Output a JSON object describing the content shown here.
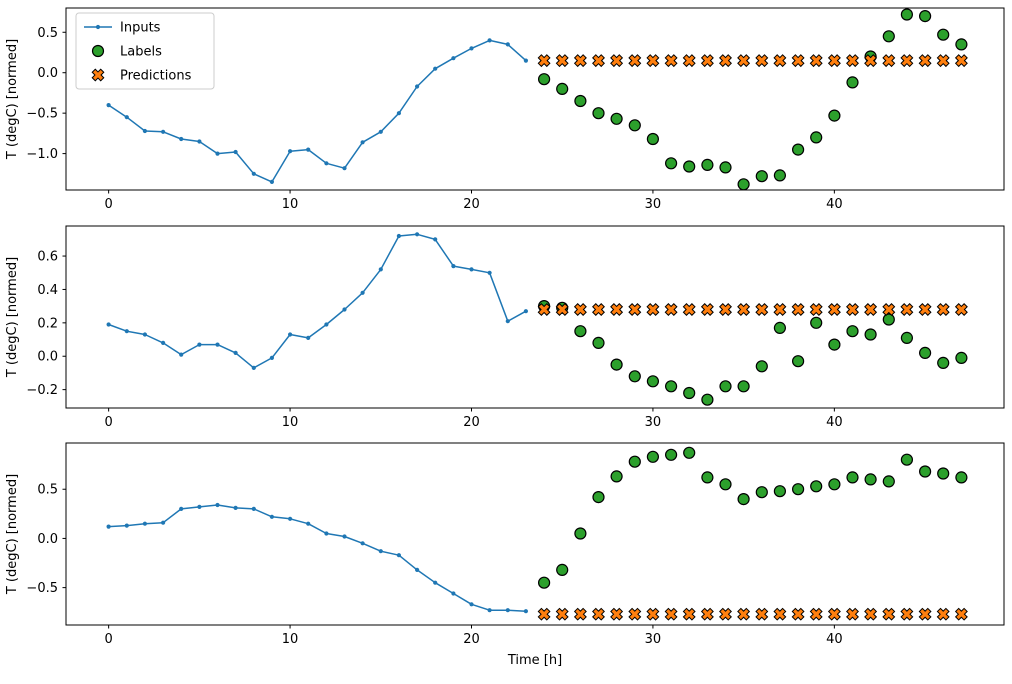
{
  "figure": {
    "background": "#ffffff",
    "xlabel": "Time [h]",
    "ylabel": "T (degC) [normed]",
    "legend": {
      "position": "top-left",
      "items": [
        {
          "label": "Inputs",
          "marker": "line-dot",
          "color": "#1f77b4",
          "edge": "#1f77b4"
        },
        {
          "label": "Labels",
          "marker": "circle",
          "color": "#2ca02c",
          "edge": "#000000"
        },
        {
          "label": "Predictions",
          "marker": "x-filled",
          "color": "#ff7f0e",
          "edge": "#000000"
        }
      ]
    }
  },
  "chart_data": [
    {
      "type": "line+scatter",
      "title": "",
      "xlabel": "",
      "ylabel": "T (degC) [normed]",
      "xlim": [
        -2.35,
        49.35
      ],
      "ylim": [
        -1.45,
        0.8
      ],
      "xticks": [
        0,
        10,
        20,
        30,
        40
      ],
      "yticks": [
        0.5,
        0.0,
        -0.5,
        -1.0
      ],
      "grid": false,
      "series": [
        {
          "name": "Inputs",
          "x": [
            0,
            1,
            2,
            3,
            4,
            5,
            6,
            7,
            8,
            9,
            10,
            11,
            12,
            13,
            14,
            15,
            16,
            17,
            18,
            19,
            20,
            21,
            22,
            23
          ],
          "y": [
            -0.4,
            -0.55,
            -0.72,
            -0.73,
            -0.82,
            -0.85,
            -1.0,
            -0.98,
            -1.25,
            -1.35,
            -0.97,
            -0.95,
            -1.12,
            -1.18,
            -0.86,
            -0.73,
            -0.5,
            -0.17,
            0.05,
            0.18,
            0.3,
            0.4,
            0.35,
            0.15
          ]
        },
        {
          "name": "Labels",
          "x": [
            24,
            25,
            26,
            27,
            28,
            29,
            30,
            31,
            32,
            33,
            34,
            35,
            36,
            37,
            38,
            39,
            40,
            41,
            42,
            43,
            44,
            45,
            46,
            47
          ],
          "y": [
            -0.08,
            -0.2,
            -0.35,
            -0.5,
            -0.57,
            -0.65,
            -0.82,
            -1.12,
            -1.16,
            -1.14,
            -1.17,
            -1.38,
            -1.28,
            -1.27,
            -0.95,
            -0.8,
            -0.53,
            -0.12,
            0.2,
            0.45,
            0.72,
            0.7,
            0.47,
            0.35
          ]
        },
        {
          "name": "Predictions",
          "x": [
            24,
            25,
            26,
            27,
            28,
            29,
            30,
            31,
            32,
            33,
            34,
            35,
            36,
            37,
            38,
            39,
            40,
            41,
            42,
            43,
            44,
            45,
            46,
            47
          ],
          "y": [
            0.15,
            0.15,
            0.15,
            0.15,
            0.15,
            0.15,
            0.15,
            0.15,
            0.15,
            0.15,
            0.15,
            0.15,
            0.15,
            0.15,
            0.15,
            0.15,
            0.15,
            0.15,
            0.15,
            0.15,
            0.15,
            0.15,
            0.15,
            0.15
          ]
        }
      ]
    },
    {
      "type": "line+scatter",
      "title": "",
      "xlabel": "",
      "ylabel": "T (degC) [normed]",
      "xlim": [
        -2.35,
        49.35
      ],
      "ylim": [
        -0.31,
        0.78
      ],
      "xticks": [
        0,
        10,
        20,
        30,
        40
      ],
      "yticks": [
        0.6,
        0.4,
        0.2,
        0.0,
        -0.2
      ],
      "grid": false,
      "series": [
        {
          "name": "Inputs",
          "x": [
            0,
            1,
            2,
            3,
            4,
            5,
            6,
            7,
            8,
            9,
            10,
            11,
            12,
            13,
            14,
            15,
            16,
            17,
            18,
            19,
            20,
            21,
            22,
            23
          ],
          "y": [
            0.19,
            0.15,
            0.13,
            0.08,
            0.01,
            0.07,
            0.07,
            0.02,
            -0.07,
            -0.01,
            0.13,
            0.11,
            0.19,
            0.28,
            0.38,
            0.52,
            0.72,
            0.73,
            0.7,
            0.54,
            0.52,
            0.5,
            0.21,
            0.27
          ]
        },
        {
          "name": "Labels",
          "x": [
            24,
            25,
            26,
            27,
            28,
            29,
            30,
            31,
            32,
            33,
            34,
            35,
            36,
            37,
            38,
            39,
            40,
            41,
            42,
            43,
            44,
            45,
            46,
            47
          ],
          "y": [
            0.3,
            0.29,
            0.15,
            0.08,
            -0.05,
            -0.12,
            -0.15,
            -0.18,
            -0.22,
            -0.26,
            -0.18,
            -0.18,
            -0.06,
            0.17,
            -0.03,
            0.2,
            0.07,
            0.15,
            0.13,
            0.22,
            0.11,
            0.02,
            -0.04,
            -0.01
          ]
        },
        {
          "name": "Predictions",
          "x": [
            24,
            25,
            26,
            27,
            28,
            29,
            30,
            31,
            32,
            33,
            34,
            35,
            36,
            37,
            38,
            39,
            40,
            41,
            42,
            43,
            44,
            45,
            46,
            47
          ],
          "y": [
            0.28,
            0.28,
            0.28,
            0.28,
            0.28,
            0.28,
            0.28,
            0.28,
            0.28,
            0.28,
            0.28,
            0.28,
            0.28,
            0.28,
            0.28,
            0.28,
            0.28,
            0.28,
            0.28,
            0.28,
            0.28,
            0.28,
            0.28,
            0.28
          ]
        }
      ]
    },
    {
      "type": "line+scatter",
      "title": "",
      "xlabel": "Time [h]",
      "ylabel": "T (degC) [normed]",
      "xlim": [
        -2.35,
        49.35
      ],
      "ylim": [
        -0.88,
        0.97
      ],
      "xticks": [
        0,
        10,
        20,
        30,
        40
      ],
      "yticks": [
        0.5,
        0.0,
        -0.5
      ],
      "grid": false,
      "series": [
        {
          "name": "Inputs",
          "x": [
            0,
            1,
            2,
            3,
            4,
            5,
            6,
            7,
            8,
            9,
            10,
            11,
            12,
            13,
            14,
            15,
            16,
            17,
            18,
            19,
            20,
            21,
            22,
            23
          ],
          "y": [
            0.12,
            0.13,
            0.15,
            0.16,
            0.3,
            0.32,
            0.34,
            0.31,
            0.3,
            0.22,
            0.2,
            0.15,
            0.05,
            0.02,
            -0.05,
            -0.13,
            -0.17,
            -0.32,
            -0.45,
            -0.56,
            -0.67,
            -0.73,
            -0.73,
            -0.74
          ]
        },
        {
          "name": "Labels",
          "x": [
            24,
            25,
            26,
            27,
            28,
            29,
            30,
            31,
            32,
            33,
            34,
            35,
            36,
            37,
            38,
            39,
            40,
            41,
            42,
            43,
            44,
            45,
            46,
            47
          ],
          "y": [
            -0.45,
            -0.32,
            0.05,
            0.42,
            0.63,
            0.78,
            0.83,
            0.85,
            0.87,
            0.62,
            0.55,
            0.4,
            0.47,
            0.48,
            0.5,
            0.53,
            0.55,
            0.62,
            0.6,
            0.58,
            0.8,
            0.68,
            0.66,
            0.62
          ]
        },
        {
          "name": "Predictions",
          "x": [
            24,
            25,
            26,
            27,
            28,
            29,
            30,
            31,
            32,
            33,
            34,
            35,
            36,
            37,
            38,
            39,
            40,
            41,
            42,
            43,
            44,
            45,
            46,
            47
          ],
          "y": [
            -0.77,
            -0.77,
            -0.77,
            -0.77,
            -0.77,
            -0.77,
            -0.77,
            -0.77,
            -0.77,
            -0.77,
            -0.77,
            -0.77,
            -0.77,
            -0.77,
            -0.77,
            -0.77,
            -0.77,
            -0.77,
            -0.77,
            -0.77,
            -0.77,
            -0.77,
            -0.77,
            -0.77
          ]
        }
      ]
    }
  ]
}
